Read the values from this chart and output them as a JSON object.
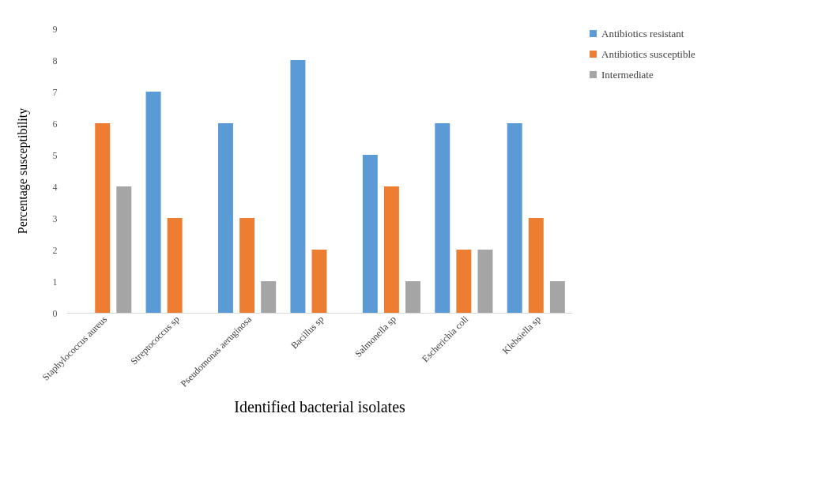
{
  "chart_data": {
    "type": "bar",
    "xlabel": "Identified bacterial isolates",
    "ylabel": "Percentage susceptibility",
    "categories": [
      "Staphylococcus aureus",
      "Streptococcus sp",
      "Pseudomonas aeruginosa",
      "Bacillus sp",
      "Salmonella sp",
      "Escherichia coli",
      "Klebsiella sp"
    ],
    "series": [
      {
        "name": "Antibiotics resistant",
        "color": "#5b9bd5",
        "values": [
          0,
          7,
          6,
          8,
          5,
          6,
          6
        ]
      },
      {
        "name": "Antibiotics susceptible",
        "color": "#ed7d31",
        "values": [
          6,
          3,
          3,
          2,
          4,
          2,
          3
        ]
      },
      {
        "name": "Intermediate",
        "color": "#a5a5a5",
        "values": [
          4,
          0,
          1,
          0,
          1,
          2,
          1
        ]
      }
    ],
    "ylim": [
      0,
      9
    ],
    "yticks": [
      0,
      1,
      2,
      3,
      4,
      5,
      6,
      7,
      8,
      9
    ],
    "grid": false,
    "legend": "right"
  }
}
